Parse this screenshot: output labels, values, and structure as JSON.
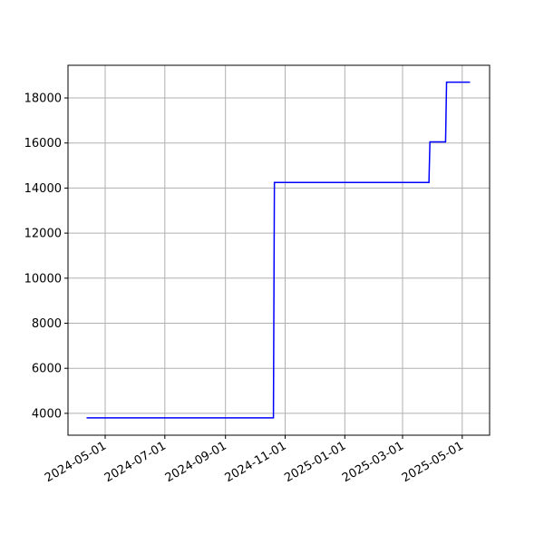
{
  "chart_data": {
    "type": "line",
    "x": [
      "2024-04-12",
      "2024-10-20",
      "2024-10-21",
      "2025-03-28",
      "2025-03-29",
      "2025-04-14",
      "2025-04-15",
      "2025-05-09"
    ],
    "series": [
      {
        "color": "#0000ff",
        "values": [
          3800,
          3800,
          14250,
          14250,
          16050,
          16050,
          18700,
          18700
        ]
      }
    ],
    "xlim": [
      "2024-03-24",
      "2025-05-29"
    ],
    "xticks": [
      "2024-05-01",
      "2024-07-01",
      "2024-09-01",
      "2024-11-01",
      "2025-01-01",
      "2025-03-01",
      "2025-05-01"
    ],
    "ylim": [
      3030,
      19450
    ],
    "yticks": [
      4000,
      6000,
      8000,
      10000,
      12000,
      14000,
      16000,
      18000
    ],
    "grid": true
  }
}
